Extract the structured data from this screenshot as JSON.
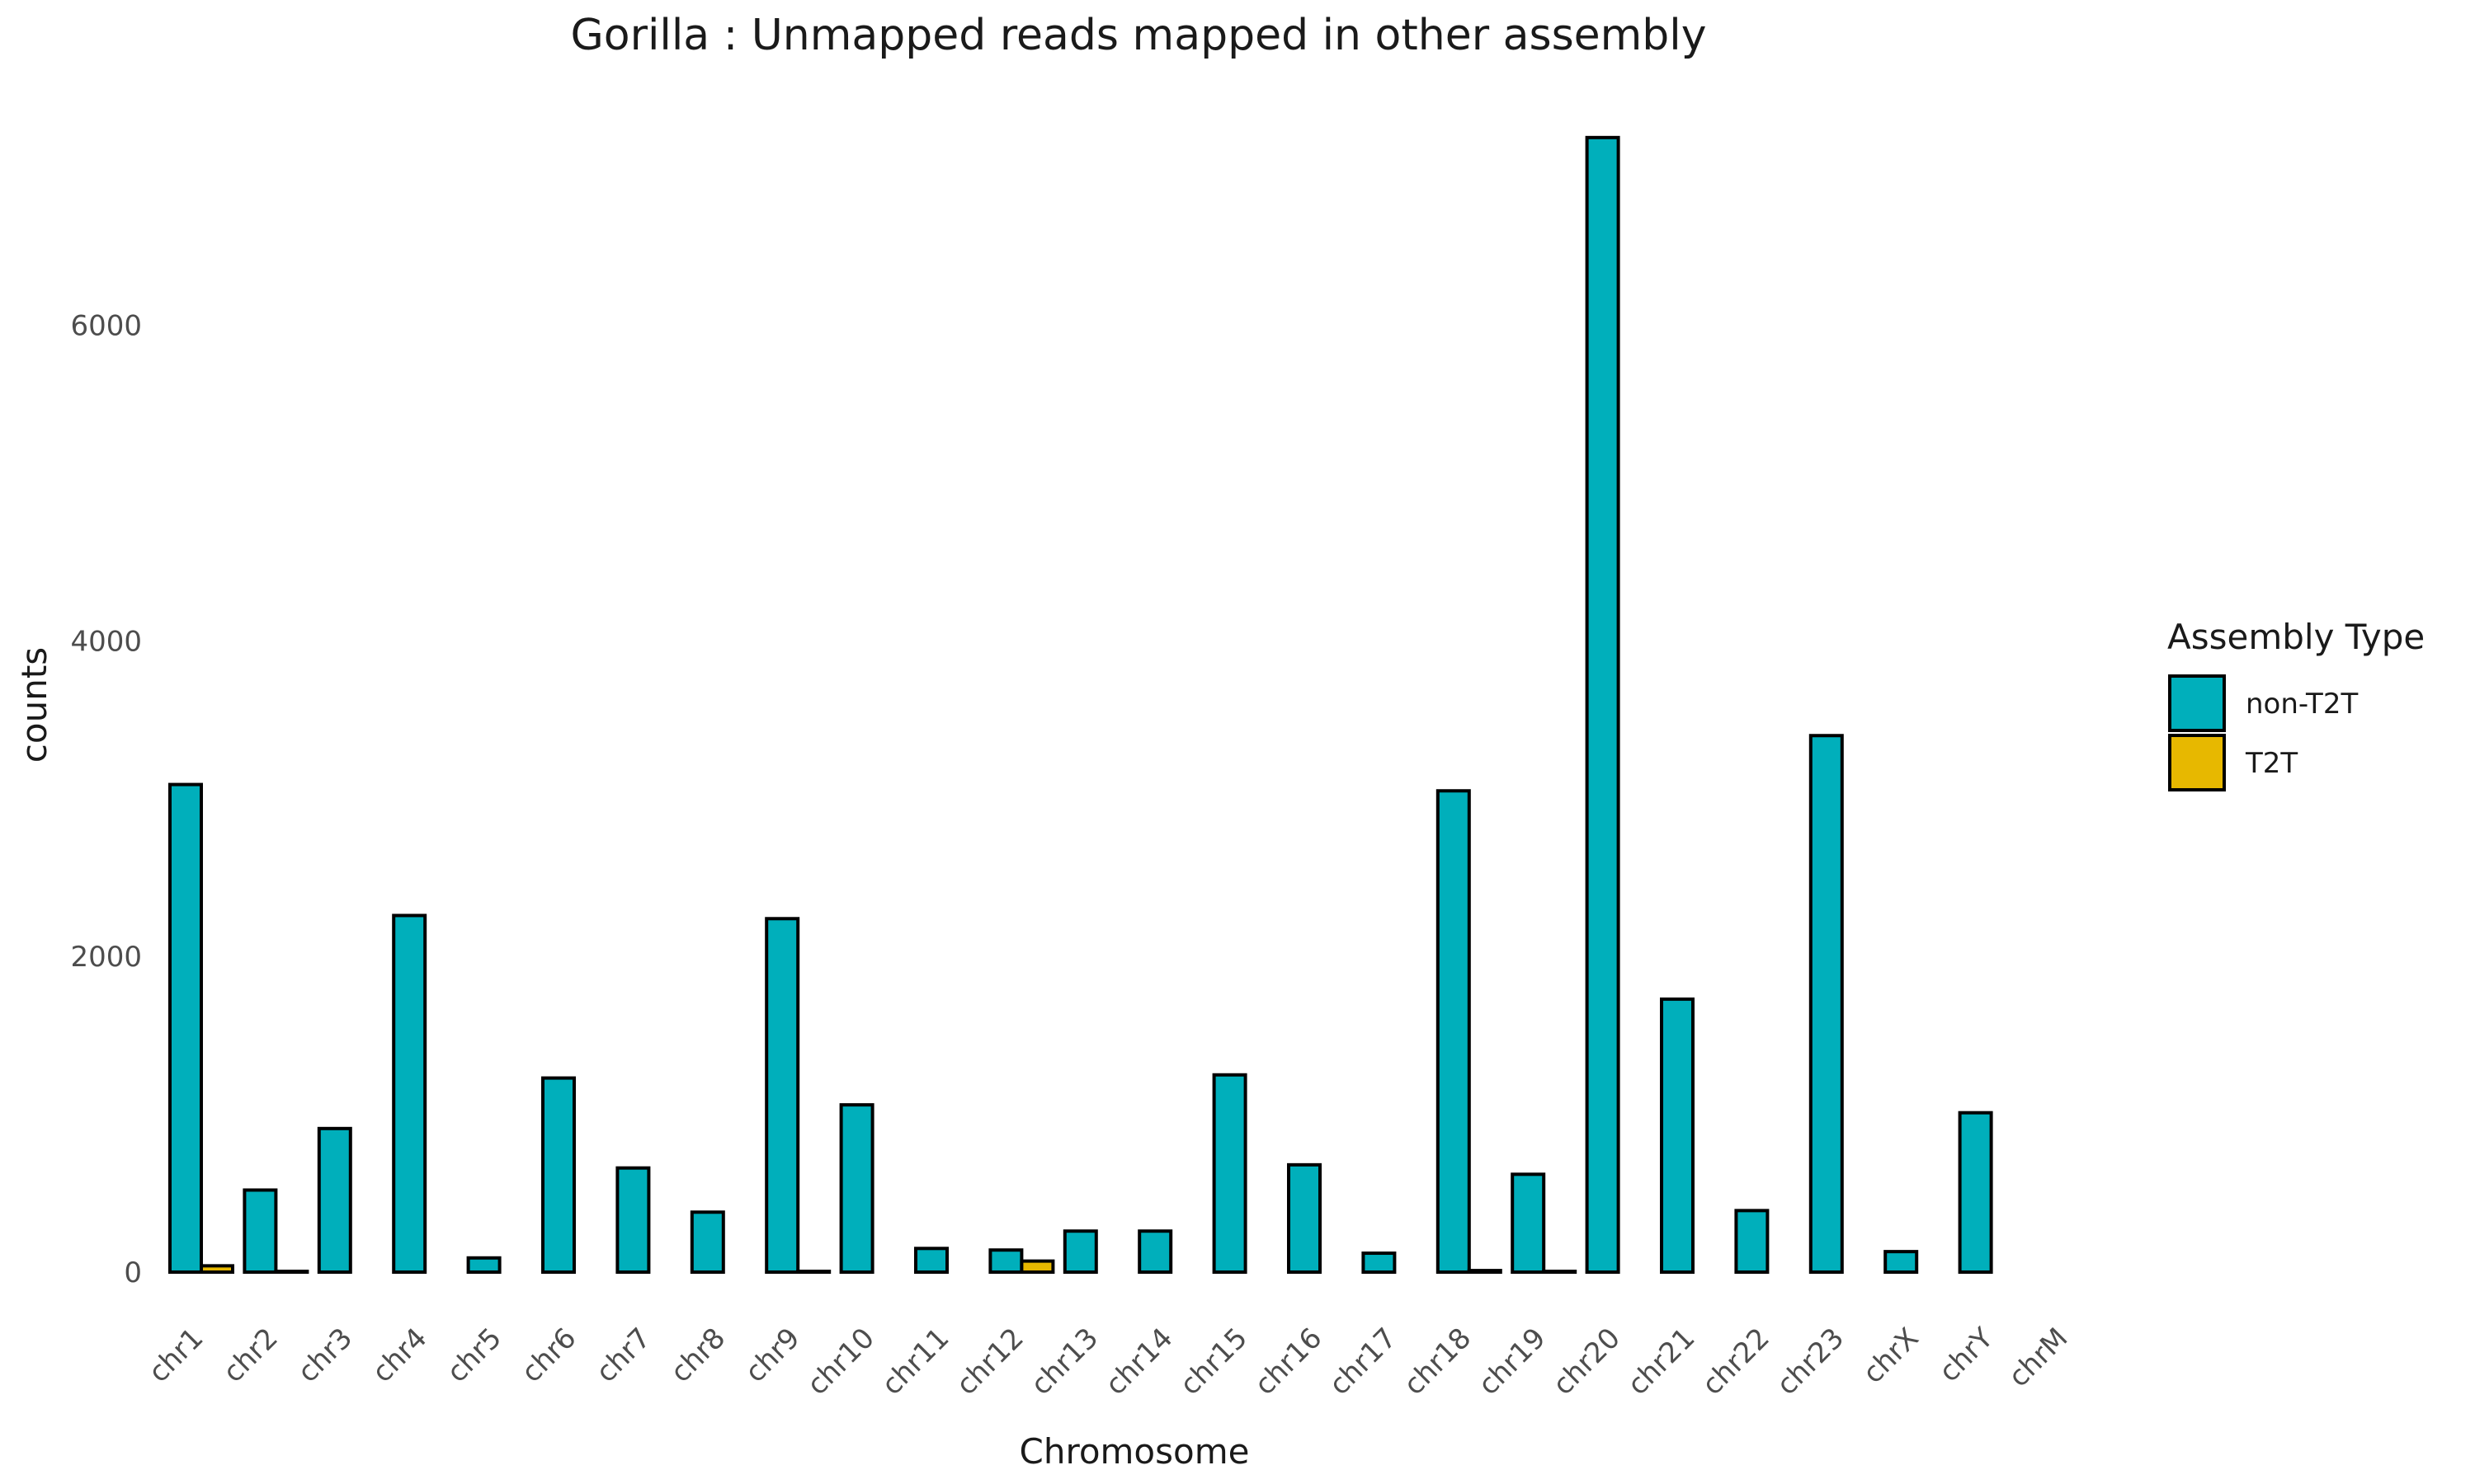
{
  "chart_data": {
    "type": "bar",
    "title": "Gorilla : Unmapped reads mapped in other assembly",
    "xlabel": "Chromosome",
    "ylabel": "counts",
    "ylim": [
      -200,
      7200
    ],
    "yticks": [
      0,
      2000,
      4000,
      6000
    ],
    "categories": [
      "chr1",
      "chr2",
      "chr3",
      "chr4",
      "chr5",
      "chr6",
      "chr7",
      "chr8",
      "chr9",
      "chr10",
      "chr11",
      "chr12",
      "chr13",
      "chr14",
      "chr15",
      "chr16",
      "chr17",
      "chr18",
      "chr19",
      "chr20",
      "chr21",
      "chr22",
      "chr23",
      "chrX",
      "chrY",
      "chrM"
    ],
    "series": [
      {
        "name": "non-T2T",
        "color": "#00AFBB",
        "values": [
          3090,
          520,
          910,
          2260,
          90,
          1230,
          660,
          380,
          2240,
          1060,
          150,
          140,
          260,
          260,
          1250,
          680,
          120,
          3050,
          620,
          7190,
          1730,
          390,
          3400,
          130,
          1010,
          0
        ]
      },
      {
        "name": "T2T",
        "color": "#E7B800",
        "values": [
          40,
          5,
          0,
          0,
          0,
          0,
          0,
          0,
          5,
          0,
          0,
          70,
          0,
          0,
          0,
          0,
          0,
          10,
          5,
          0,
          0,
          0,
          0,
          0,
          0,
          0
        ]
      }
    ],
    "legend": {
      "title": "Assembly Type",
      "position": "right"
    },
    "grid": false
  }
}
